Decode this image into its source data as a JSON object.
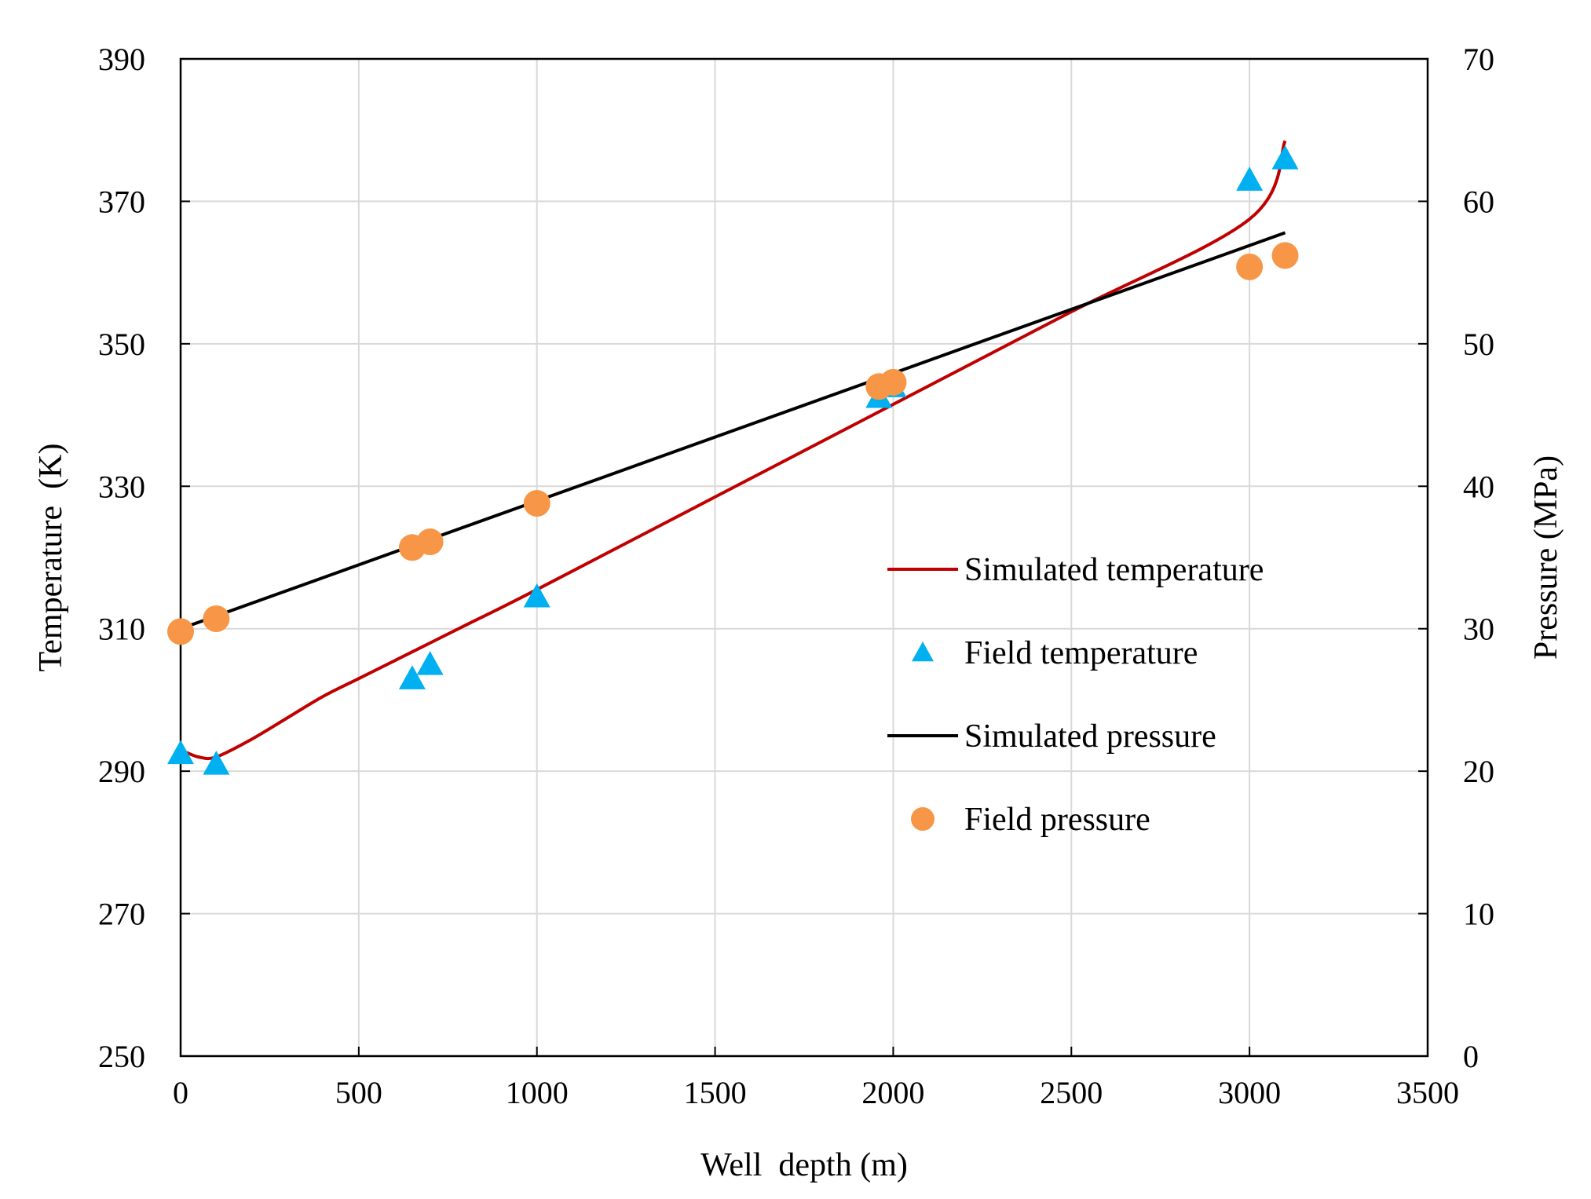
{
  "chart_data": {
    "type": "line",
    "title": "",
    "xlabel": "Well  depth (m)",
    "ylabel": "Temperature  (K)",
    "y2label": "Pressure (MPa)",
    "xlim": [
      0,
      3500
    ],
    "ylim": [
      250,
      390
    ],
    "y2lim": [
      0,
      70
    ],
    "xticks": [
      0,
      500,
      1000,
      1500,
      2000,
      2500,
      3000,
      3500
    ],
    "yticks": [
      250,
      270,
      290,
      310,
      330,
      350,
      370,
      390
    ],
    "y2ticks": [
      0,
      10,
      20,
      30,
      40,
      50,
      60,
      70
    ],
    "grid": true,
    "legend_position": "center-right",
    "colors": {
      "simulated_temperature": "#c00000",
      "field_temperature": "#00b0f0",
      "simulated_pressure": "#000000",
      "field_pressure": "#f79646"
    },
    "series": [
      {
        "name": "Simulated temperature",
        "kind": "line",
        "axis": "left",
        "x": [
          0,
          50,
          100,
          200,
          300,
          400,
          500,
          600,
          700,
          800,
          1000,
          1500,
          2000,
          2500,
          3000,
          3100
        ],
        "values": [
          293,
          292,
          292,
          294.5,
          297.5,
          300.5,
          303,
          305.5,
          308,
          310.5,
          315.5,
          328.5,
          341.5,
          354.5,
          367.5,
          378.5
        ]
      },
      {
        "name": "Field temperature",
        "kind": "scatter",
        "marker": "triangle",
        "axis": "left",
        "x": [
          0,
          100,
          650,
          700,
          1000,
          1960,
          2000,
          3000,
          3100
        ],
        "values": [
          292.5,
          291,
          303,
          305,
          314.5,
          342.5,
          344,
          373,
          376
        ]
      },
      {
        "name": "Simulated pressure",
        "kind": "line",
        "axis": "right",
        "x": [
          0,
          3100
        ],
        "values": [
          30,
          57.8
        ]
      },
      {
        "name": "Field pressure",
        "kind": "scatter",
        "marker": "circle",
        "axis": "right",
        "x": [
          0,
          100,
          650,
          700,
          1000,
          1960,
          2000,
          3000,
          3100
        ],
        "values": [
          29.8,
          30.7,
          35.7,
          36.1,
          38.8,
          47,
          47.3,
          55.4,
          56.2
        ]
      }
    ]
  }
}
